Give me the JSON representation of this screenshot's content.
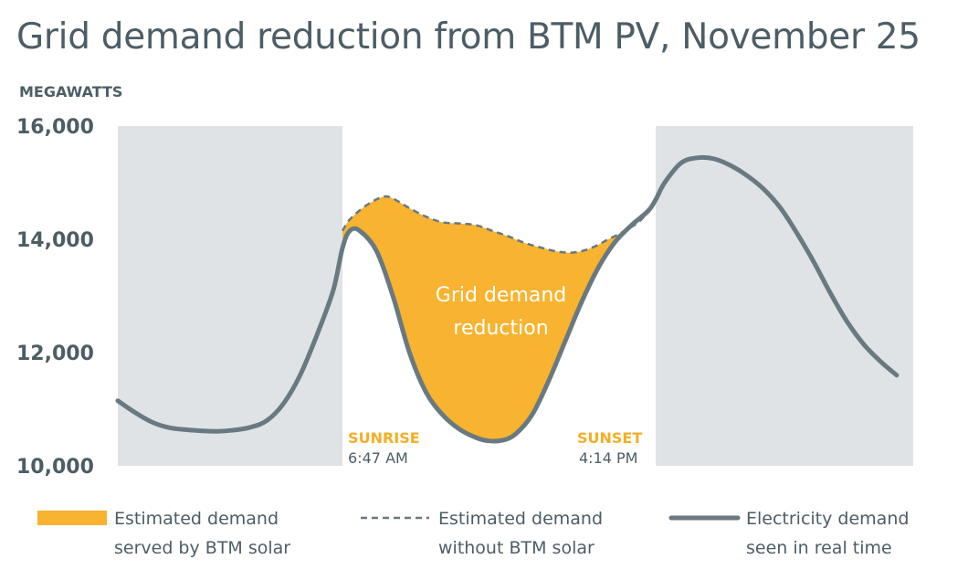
{
  "title": "Grid demand reduction from BTM PV, November 25",
  "units_label": "MEGAWATTS",
  "colors": {
    "night_shade": "#e0e3e5",
    "solar_fill": "#f8b330",
    "line": "#687981",
    "text": "#4d5d66",
    "accent_text": "#f5ae24"
  },
  "chart_data": {
    "type": "area",
    "title": "Grid demand reduction from BTM PV, November 25",
    "ylabel": "MEGAWATTS",
    "xlabel": "",
    "ylim": [
      10000,
      16000
    ],
    "xlim": [
      0,
      24
    ],
    "yticks": [
      10000,
      12000,
      14000,
      16000
    ],
    "ytick_labels": [
      "10,000",
      "12,000",
      "14,000",
      "16,000"
    ],
    "night_periods": [
      [
        0,
        6.78
      ],
      [
        16.23,
        24
      ]
    ],
    "area_label_lines": [
      "Grid demand",
      "reduction"
    ],
    "annotations": [
      {
        "name": "sunrise",
        "label": "SUNRISE",
        "time": "6:47 AM",
        "x": 6.78
      },
      {
        "name": "sunset",
        "label": "SUNSET",
        "time": "4:14 PM",
        "x": 16.23
      }
    ],
    "series": [
      {
        "name": "Electricity demand seen in real time",
        "style": "solid",
        "points": [
          [
            0,
            11150
          ],
          [
            0.5,
            10950
          ],
          [
            1,
            10780
          ],
          [
            1.5,
            10680
          ],
          [
            2,
            10640
          ],
          [
            2.5,
            10620
          ],
          [
            3,
            10610
          ],
          [
            3.5,
            10630
          ],
          [
            4,
            10680
          ],
          [
            4.5,
            10800
          ],
          [
            5,
            11100
          ],
          [
            5.5,
            11600
          ],
          [
            6,
            12300
          ],
          [
            6.5,
            13100
          ],
          [
            6.78,
            13850
          ],
          [
            7,
            14150
          ],
          [
            7.3,
            14150
          ],
          [
            7.8,
            13800
          ],
          [
            8.3,
            13000
          ],
          [
            8.8,
            12000
          ],
          [
            9.3,
            11300
          ],
          [
            9.8,
            10900
          ],
          [
            10.3,
            10650
          ],
          [
            10.8,
            10500
          ],
          [
            11.2,
            10440
          ],
          [
            11.6,
            10450
          ],
          [
            12,
            10560
          ],
          [
            12.5,
            10900
          ],
          [
            13,
            11500
          ],
          [
            13.5,
            12200
          ],
          [
            14,
            12900
          ],
          [
            14.5,
            13500
          ],
          [
            15,
            13950
          ],
          [
            15.5,
            14250
          ],
          [
            16,
            14500
          ],
          [
            16.23,
            14700
          ],
          [
            16.5,
            15000
          ],
          [
            17,
            15350
          ],
          [
            17.5,
            15440
          ],
          [
            18,
            15420
          ],
          [
            18.5,
            15300
          ],
          [
            19,
            15120
          ],
          [
            19.5,
            14880
          ],
          [
            20,
            14550
          ],
          [
            20.5,
            14100
          ],
          [
            21,
            13600
          ],
          [
            21.5,
            13050
          ],
          [
            22,
            12550
          ],
          [
            22.5,
            12150
          ],
          [
            23,
            11850
          ],
          [
            23.5,
            11600
          ]
        ]
      },
      {
        "name": "Estimated demand without BTM solar",
        "style": "dashed",
        "points": [
          [
            6.78,
            14150
          ],
          [
            7,
            14350
          ],
          [
            7.5,
            14600
          ],
          [
            8,
            14750
          ],
          [
            8.3,
            14720
          ],
          [
            8.8,
            14550
          ],
          [
            9.3,
            14400
          ],
          [
            9.8,
            14300
          ],
          [
            10.3,
            14280
          ],
          [
            10.8,
            14250
          ],
          [
            11.3,
            14150
          ],
          [
            11.8,
            14050
          ],
          [
            12.3,
            13930
          ],
          [
            12.8,
            13850
          ],
          [
            13.3,
            13780
          ],
          [
            13.8,
            13770
          ],
          [
            14.3,
            13850
          ],
          [
            14.8,
            14000
          ],
          [
            15.3,
            14150
          ],
          [
            15.8,
            14350
          ],
          [
            16.23,
            14700
          ]
        ]
      },
      {
        "name": "Estimated demand served by BTM solar",
        "style": "fill",
        "description": "area between estimated demand without BTM solar and real-time demand"
      }
    ],
    "legend": [
      {
        "key": "fill",
        "lines": [
          "Estimated demand",
          "served by BTM solar"
        ]
      },
      {
        "key": "dashed",
        "lines": [
          "Estimated demand",
          "without BTM solar"
        ]
      },
      {
        "key": "solid",
        "lines": [
          "Electricity demand",
          "seen in real time"
        ]
      }
    ]
  }
}
